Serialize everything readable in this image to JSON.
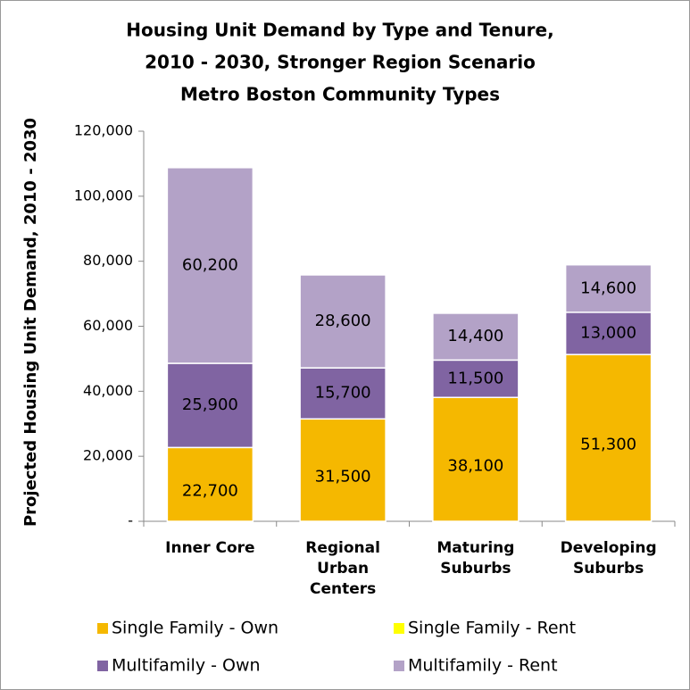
{
  "chart_data": {
    "type": "stacked_bar",
    "title": [
      "Housing Unit Demand by Type and Tenure,",
      "2010 - 2030, Stronger Region Scenario",
      "Metro Boston Community Types"
    ],
    "y_label": "Projected Housing Unit Demand, 2010 - 2030",
    "categories": [
      "Inner Core",
      "Regional Urban Centers",
      "Maturing Suburbs",
      "Developing Suburbs"
    ],
    "series": [
      {
        "name": "Single Family - Own",
        "color": "#f5b800",
        "values": [
          22700,
          31500,
          38100,
          51300
        ],
        "value_labels": [
          "22,700",
          "31,500",
          "38,100",
          "51,300"
        ]
      },
      {
        "name": "Single Family - Rent",
        "color": "#ffff00",
        "values": [
          0,
          0,
          0,
          0
        ]
      },
      {
        "name": "Multifamily - Own",
        "color": "#8064a2",
        "values": [
          25900,
          15700,
          11500,
          13000
        ],
        "value_labels": [
          "25,900",
          "15,700",
          "11,500",
          "13,000"
        ]
      },
      {
        "name": "Multifamily - Rent",
        "color": "#b3a2c7",
        "values": [
          60200,
          28600,
          14400,
          14600
        ],
        "value_labels": [
          "60,200",
          "28,600",
          "14,400",
          "14,600"
        ]
      }
    ],
    "ylim": [
      0,
      120000
    ],
    "yticks": [
      {
        "value": 0,
        "label": "-"
      },
      {
        "value": 20000,
        "label": "20,000"
      },
      {
        "value": 40000,
        "label": "40,000"
      },
      {
        "value": 60000,
        "label": "60,000"
      },
      {
        "value": 80000,
        "label": "80,000"
      },
      {
        "value": 100000,
        "label": "100,000"
      },
      {
        "value": 120000,
        "label": "120,000"
      }
    ]
  }
}
